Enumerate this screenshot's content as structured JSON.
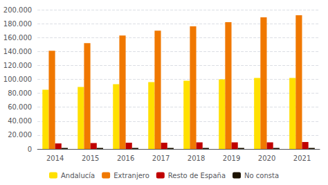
{
  "chart_data": {
    "type": "bar",
    "categories": [
      "2014",
      "2015",
      "2016",
      "2017",
      "2018",
      "2019",
      "2020",
      "2021"
    ],
    "series": [
      {
        "name": "Andalucía",
        "color": "#FFE000",
        "values": [
          85000,
          89000,
          93000,
          96000,
          98000,
          100000,
          102000,
          102000
        ]
      },
      {
        "name": "Extranjero",
        "color": "#F07800",
        "values": [
          141000,
          152000,
          163000,
          170000,
          176000,
          182000,
          189000,
          192000
        ]
      },
      {
        "name": "Resto de España",
        "color": "#C00000",
        "values": [
          8000,
          8500,
          9000,
          9000,
          9500,
          9500,
          9500,
          10000
        ]
      },
      {
        "name": "No consta",
        "color": "#1C1200",
        "values": [
          1500,
          1500,
          1500,
          1500,
          1500,
          1500,
          1500,
          1500
        ]
      }
    ],
    "ylim": [
      0,
      200000
    ],
    "yticks": [
      0,
      {
        "value": 20000,
        "label": "20.000"
      },
      {
        "value": 40000,
        "label": "40.000"
      },
      {
        "value": 60000,
        "label": "60.000"
      },
      {
        "value": 80000,
        "label": "80.000"
      },
      {
        "value": 100000,
        "label": "100.000"
      },
      {
        "value": 120000,
        "label": "120.000"
      },
      {
        "value": 140000,
        "label": "140.000"
      },
      {
        "value": 160000,
        "label": "160.000"
      },
      {
        "value": 180000,
        "label": "180.000"
      },
      {
        "value": 200000,
        "label": "200.000"
      }
    ],
    "grid": true,
    "legend": "bottom"
  }
}
